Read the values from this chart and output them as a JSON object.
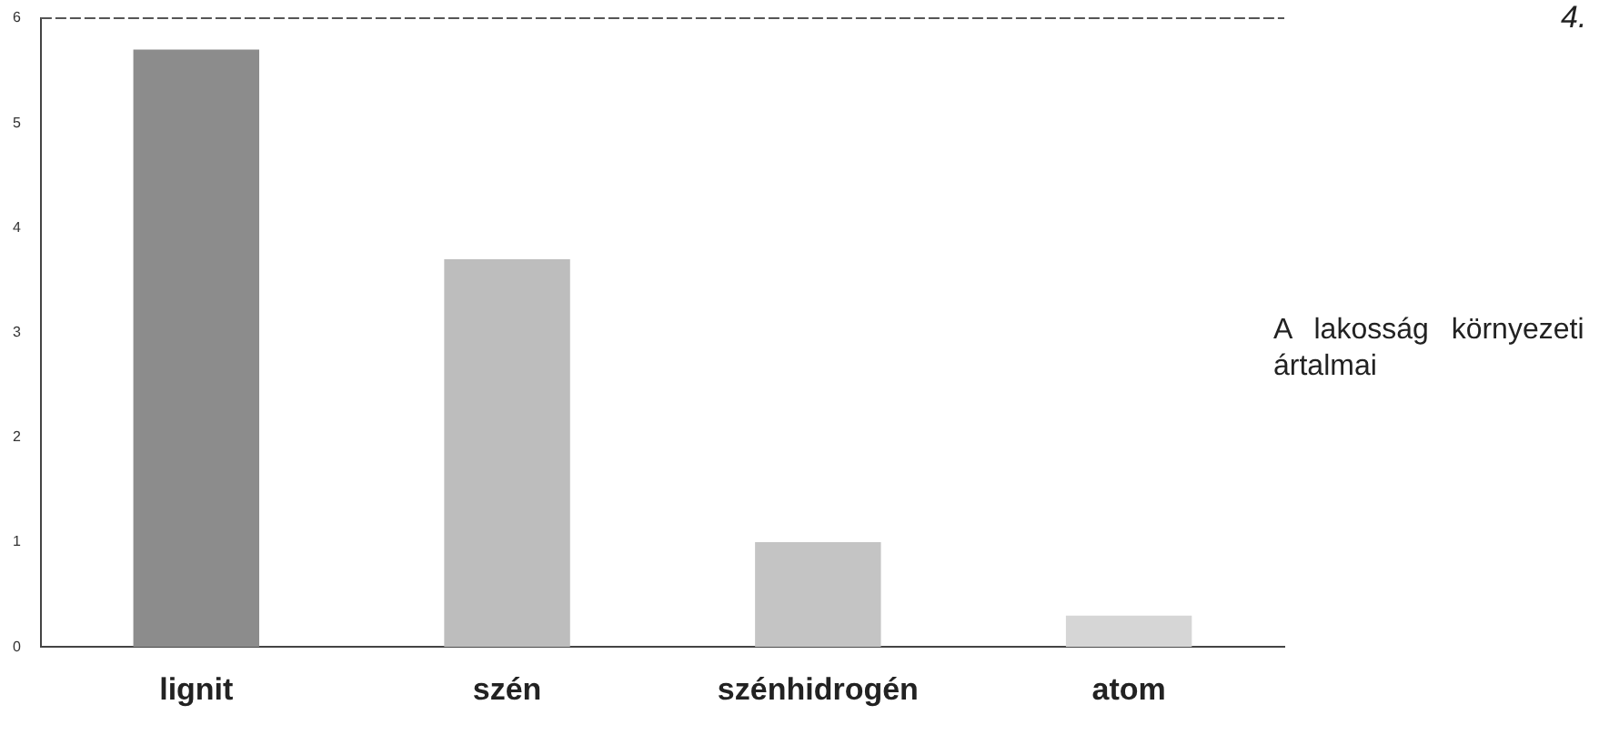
{
  "chart_data": {
    "type": "bar",
    "categories": [
      "lignit",
      "szén",
      "szénhidrogén",
      "atom"
    ],
    "values": [
      5.7,
      3.7,
      1.0,
      0.3
    ],
    "colors": [
      "#8c8c8c",
      "#bdbdbd",
      "#c4c4c4",
      "#d6d6d6"
    ],
    "ylim": [
      0,
      6
    ],
    "yticks": [
      0,
      1,
      2,
      3,
      4,
      5,
      6
    ],
    "grid": false,
    "annotations": [
      "A lakosság környezeti ártalmai",
      "4."
    ]
  }
}
